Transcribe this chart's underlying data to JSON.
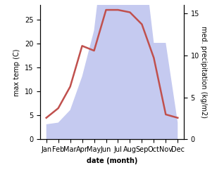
{
  "months": [
    "Jan",
    "Feb",
    "Mar",
    "Apr",
    "May",
    "Jun",
    "Jul",
    "Aug",
    "Sep",
    "Oct",
    "Nov",
    "Dec"
  ],
  "temperature": [
    4.5,
    6.5,
    11.0,
    19.5,
    18.5,
    27.0,
    27.0,
    26.5,
    24.0,
    17.0,
    5.2,
    4.5
  ],
  "precipitation": [
    1.8,
    2.0,
    3.5,
    7.5,
    13.0,
    25.0,
    26.5,
    26.0,
    23.5,
    11.5,
    11.5,
    2.0
  ],
  "temp_color": "#c0504d",
  "precip_fill_color": "#c5caf0",
  "ylabel_left": "max temp (C)",
  "ylabel_right": "med. precipitation (kg/m2)",
  "xlabel": "date (month)",
  "ylim_left": [
    0,
    28
  ],
  "ylim_right": [
    0,
    16
  ],
  "yticks_left": [
    0,
    5,
    10,
    15,
    20,
    25
  ],
  "yticks_right": [
    0,
    5,
    10,
    15
  ],
  "label_fontsize": 7,
  "tick_fontsize": 7
}
